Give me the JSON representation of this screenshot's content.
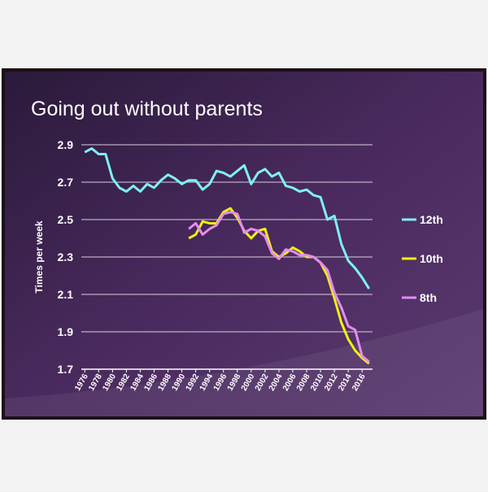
{
  "chart_data": {
    "type": "line",
    "title": "Going out without parents",
    "y_label": "Times per week",
    "x": [
      1976,
      1977,
      1978,
      1979,
      1980,
      1981,
      1982,
      1983,
      1984,
      1985,
      1986,
      1987,
      1988,
      1989,
      1990,
      1991,
      1992,
      1993,
      1994,
      1995,
      1996,
      1997,
      1998,
      1999,
      2000,
      2001,
      2002,
      2003,
      2004,
      2005,
      2006,
      2007,
      2008,
      2009,
      2010,
      2011,
      2012,
      2013,
      2014,
      2015,
      2016,
      2017
    ],
    "series": [
      {
        "name": "12th",
        "color": "#7ff0f0",
        "values": [
          2.86,
          2.88,
          2.85,
          2.85,
          2.72,
          2.67,
          2.65,
          2.68,
          2.65,
          2.69,
          2.67,
          2.71,
          2.74,
          2.72,
          2.69,
          2.71,
          2.71,
          2.66,
          2.69,
          2.76,
          2.75,
          2.73,
          2.76,
          2.79,
          2.69,
          2.75,
          2.77,
          2.73,
          2.75,
          2.68,
          2.67,
          2.65,
          2.66,
          2.63,
          2.62,
          2.5,
          2.52,
          2.37,
          2.28,
          2.24,
          2.19,
          2.13
        ]
      },
      {
        "name": "10th",
        "color": "#f0f010",
        "values": [
          null,
          null,
          null,
          null,
          null,
          null,
          null,
          null,
          null,
          null,
          null,
          null,
          null,
          null,
          null,
          2.4,
          2.42,
          2.49,
          2.48,
          2.48,
          2.54,
          2.56,
          2.51,
          2.44,
          2.4,
          2.44,
          2.45,
          2.33,
          2.3,
          2.32,
          2.35,
          2.33,
          2.3,
          2.3,
          2.27,
          2.2,
          2.08,
          1.95,
          1.86,
          1.8,
          1.76,
          1.73
        ]
      },
      {
        "name": "8th",
        "color": "#e38cf0",
        "values": [
          null,
          null,
          null,
          null,
          null,
          null,
          null,
          null,
          null,
          null,
          null,
          null,
          null,
          null,
          null,
          2.45,
          2.48,
          2.42,
          2.45,
          2.47,
          2.53,
          2.54,
          2.53,
          2.43,
          2.45,
          2.44,
          2.41,
          2.32,
          2.29,
          2.34,
          2.33,
          2.31,
          2.31,
          2.3,
          2.27,
          2.23,
          2.11,
          2.03,
          1.93,
          1.91,
          1.77,
          1.74
        ]
      }
    ],
    "xlim": [
      1975.5,
      2017.5
    ],
    "xticks": [
      1976,
      1978,
      1980,
      1982,
      1984,
      1986,
      1988,
      1990,
      1992,
      1994,
      1996,
      1998,
      2000,
      2002,
      2004,
      2006,
      2008,
      2010,
      2012,
      2014,
      2016
    ],
    "ylim": [
      1.7,
      2.9
    ],
    "yticks": [
      2.9,
      2.7,
      2.5,
      2.3,
      2.1,
      1.9,
      1.7
    ],
    "grid": true,
    "legend": "right"
  }
}
